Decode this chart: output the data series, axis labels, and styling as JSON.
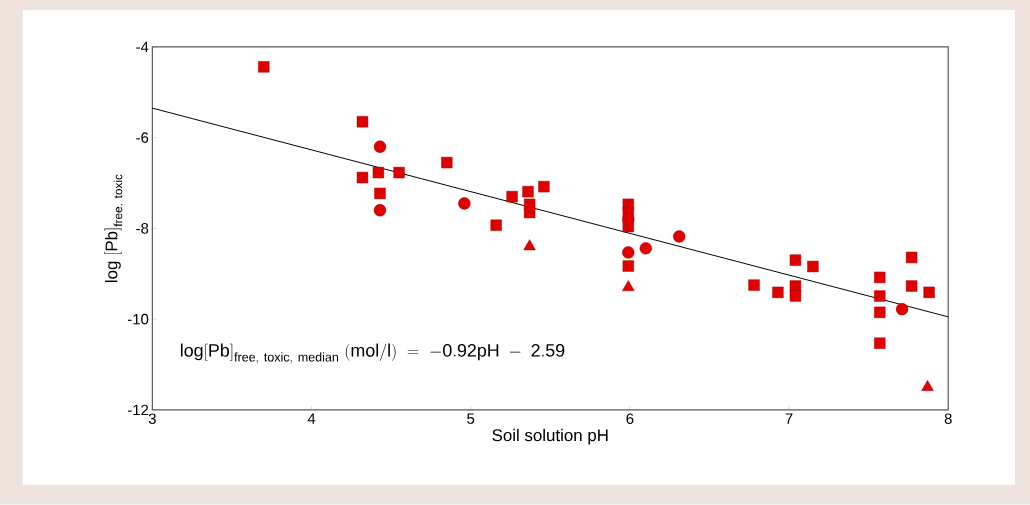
{
  "chart_data": {
    "type": "scatter",
    "xlabel": "Soil solution pH",
    "ylabel": "\\mathrm{log\\ [Pb]}_{\\mathrm{free,\\ toxic}}",
    "annotations": [
      "\\mathrm{log[Pb]}_{\\mathrm{free,\\ toxic,\\ median}}\\ \\mathrm{(mol/l)\\ =\\ -0.92pH\\ -\\ 2.59}"
    ],
    "xlim": [
      3,
      8
    ],
    "ylim": [
      -12,
      -4
    ],
    "xticks": [
      3,
      4,
      5,
      6,
      7,
      8
    ],
    "yticks": [
      -12,
      -10,
      -8,
      -6,
      -4
    ],
    "series": [
      {
        "color": "#e00000",
        "marker": "square",
        "x": [
          3.7,
          4.32,
          4.32,
          4.42,
          4.55,
          4.43,
          4.85,
          5.16,
          5.26,
          5.36,
          5.46,
          5.37,
          5.37,
          5.99,
          5.99,
          5.99,
          5.99,
          6.78,
          6.93,
          7.04,
          7.04,
          7.04,
          7.15,
          7.57,
          7.57,
          7.57,
          7.57,
          7.77,
          7.77,
          7.88
        ],
        "values": [
          -4.44,
          -5.65,
          -6.88,
          -6.77,
          -6.77,
          -7.23,
          -6.55,
          -7.93,
          -7.3,
          -7.19,
          -7.08,
          -7.47,
          -7.65,
          -7.47,
          -7.65,
          -7.96,
          -8.83,
          -9.25,
          -9.41,
          -9.27,
          -9.49,
          -8.7,
          -8.84,
          -9.08,
          -9.49,
          -9.85,
          -10.53,
          -8.64,
          -9.27,
          -9.41
        ]
      },
      {
        "color": "#e00000",
        "marker": "circle",
        "x": [
          4.43,
          4.43,
          4.96,
          5.99,
          5.99,
          6.1,
          6.31,
          7.71
        ],
        "values": [
          -6.2,
          -7.6,
          -7.45,
          -7.8,
          -8.53,
          -8.44,
          -8.18,
          -9.78
        ]
      },
      {
        "color": "#e00000",
        "marker": "triangle",
        "x": [
          5.37,
          5.99,
          7.87
        ],
        "values": [
          -8.4,
          -9.3,
          -11.5
        ]
      },
      {
        "type": "line",
        "color": "#000000",
        "marker": "none",
        "x": [
          3,
          8
        ],
        "values": [
          -5.35,
          -9.95
        ]
      }
    ]
  }
}
